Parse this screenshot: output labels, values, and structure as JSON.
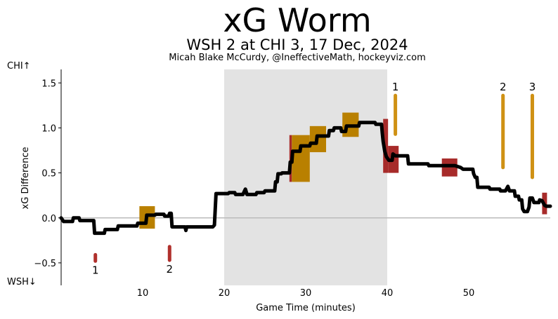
{
  "chart_data": {
    "type": "line",
    "title": "xG Worm",
    "subtitle": "WSH 2 at CHI 3, 17 Dec, 2024",
    "byline": "Micah Blake McCurdy, @IneffectiveMath, hockeyviz.com",
    "xlabel": "Game Time (minutes)",
    "ylabel": "xG Difference",
    "top_team_label": "CHI↑",
    "bottom_team_label": "WSH↓",
    "xlim": [
      0,
      60
    ],
    "ylim": [
      -0.75,
      1.65
    ],
    "xticks": [
      10,
      20,
      30,
      40,
      50
    ],
    "yticks": [
      -0.5,
      0.0,
      0.5,
      1.0,
      1.5
    ],
    "ytick_labels": [
      "−0.5",
      "0.0",
      "0.5",
      "1.0",
      "1.5"
    ],
    "shaded_period": [
      20,
      40
    ],
    "colors": {
      "worm": "#000000",
      "shade": "#e3e3e3",
      "zero_line": "#bbbbbb",
      "chi_penalty": "#a72b2a",
      "wsh_penalty": "#b98000",
      "goal_gold": "#cf9114",
      "goal_red": "#b0302c"
    },
    "worm": [
      [
        0,
        0.0
      ],
      [
        0.3,
        -0.04
      ],
      [
        1.4,
        -0.04
      ],
      [
        1.5,
        0.0
      ],
      [
        2.2,
        0.0
      ],
      [
        2.3,
        -0.03
      ],
      [
        4.0,
        -0.03
      ],
      [
        4.1,
        -0.17
      ],
      [
        5.3,
        -0.17
      ],
      [
        5.4,
        -0.13
      ],
      [
        6.9,
        -0.13
      ],
      [
        7.0,
        -0.09
      ],
      [
        9.3,
        -0.09
      ],
      [
        9.4,
        -0.06
      ],
      [
        10.4,
        -0.06
      ],
      [
        10.5,
        0.03
      ],
      [
        11.5,
        0.03
      ],
      [
        11.6,
        0.04
      ],
      [
        12.6,
        0.04
      ],
      [
        12.7,
        0.02
      ],
      [
        13.2,
        0.02
      ],
      [
        13.3,
        0.05
      ],
      [
        13.5,
        0.05
      ],
      [
        13.6,
        -0.1
      ],
      [
        15.2,
        -0.1
      ],
      [
        15.3,
        -0.14
      ],
      [
        15.4,
        -0.1
      ],
      [
        18.6,
        -0.1
      ],
      [
        18.8,
        -0.08
      ],
      [
        19.0,
        0.27
      ],
      [
        20.5,
        0.27
      ],
      [
        20.6,
        0.28
      ],
      [
        21.3,
        0.28
      ],
      [
        21.4,
        0.26
      ],
      [
        22.3,
        0.26
      ],
      [
        22.4,
        0.28
      ],
      [
        22.6,
        0.32
      ],
      [
        22.8,
        0.26
      ],
      [
        23.9,
        0.26
      ],
      [
        24.0,
        0.28
      ],
      [
        24.9,
        0.28
      ],
      [
        25.0,
        0.3
      ],
      [
        26.2,
        0.3
      ],
      [
        26.3,
        0.4
      ],
      [
        26.5,
        0.4
      ],
      [
        26.6,
        0.49
      ],
      [
        27.0,
        0.49
      ],
      [
        27.1,
        0.5
      ],
      [
        28.0,
        0.5
      ],
      [
        28.1,
        0.62
      ],
      [
        28.3,
        0.62
      ],
      [
        28.4,
        0.74
      ],
      [
        29.3,
        0.74
      ],
      [
        29.4,
        0.8
      ],
      [
        30.5,
        0.8
      ],
      [
        30.6,
        0.83
      ],
      [
        31.3,
        0.83
      ],
      [
        31.4,
        0.91
      ],
      [
        32.8,
        0.91
      ],
      [
        32.9,
        0.97
      ],
      [
        33.4,
        0.97
      ],
      [
        33.5,
        1.0
      ],
      [
        34.3,
        1.0
      ],
      [
        34.4,
        0.96
      ],
      [
        34.9,
        0.96
      ],
      [
        35.0,
        1.02
      ],
      [
        36.5,
        1.02
      ],
      [
        36.6,
        1.06
      ],
      [
        38.5,
        1.06
      ],
      [
        38.6,
        1.04
      ],
      [
        39.3,
        1.04
      ],
      [
        39.4,
        0.94
      ],
      [
        39.5,
        0.85
      ],
      [
        39.7,
        0.74
      ],
      [
        39.9,
        0.68
      ],
      [
        40.2,
        0.64
      ],
      [
        40.6,
        0.64
      ],
      [
        40.7,
        0.71
      ],
      [
        41.0,
        0.69
      ],
      [
        42.5,
        0.69
      ],
      [
        42.6,
        0.6
      ],
      [
        45.0,
        0.6
      ],
      [
        45.1,
        0.58
      ],
      [
        48.0,
        0.58
      ],
      [
        48.3,
        0.58
      ],
      [
        49.0,
        0.56
      ],
      [
        49.3,
        0.54
      ],
      [
        50.5,
        0.54
      ],
      [
        50.6,
        0.49
      ],
      [
        50.8,
        0.45
      ],
      [
        51.0,
        0.45
      ],
      [
        51.1,
        0.34
      ],
      [
        52.5,
        0.34
      ],
      [
        52.6,
        0.32
      ],
      [
        53.8,
        0.32
      ],
      [
        53.9,
        0.3
      ],
      [
        54.5,
        0.3
      ],
      [
        54.8,
        0.35
      ],
      [
        55.0,
        0.3
      ],
      [
        55.6,
        0.3
      ],
      [
        55.7,
        0.24
      ],
      [
        56.1,
        0.24
      ],
      [
        56.2,
        0.2
      ],
      [
        56.5,
        0.2
      ],
      [
        56.6,
        0.1
      ],
      [
        56.8,
        0.07
      ],
      [
        57.2,
        0.07
      ],
      [
        57.4,
        0.12
      ],
      [
        57.5,
        0.22
      ],
      [
        57.8,
        0.22
      ],
      [
        58.0,
        0.17
      ],
      [
        58.6,
        0.17
      ],
      [
        58.7,
        0.2
      ],
      [
        59.0,
        0.19
      ],
      [
        59.3,
        0.14
      ],
      [
        59.5,
        0.13
      ],
      [
        60.0,
        0.13
      ]
    ],
    "penalties": [
      {
        "team": "WSH",
        "x0": 9.6,
        "x1": 11.5,
        "y0": -0.12,
        "y1": 0.13
      },
      {
        "team": "CHI",
        "x0": 28.0,
        "x1": 28.3,
        "y0": 0.4,
        "y1": 0.92
      },
      {
        "team": "WSH",
        "x0": 28.3,
        "x1": 30.5,
        "y0": 0.4,
        "y1": 0.92
      },
      {
        "team": "WSH",
        "x0": 30.5,
        "x1": 32.5,
        "y0": 0.73,
        "y1": 1.02
      },
      {
        "team": "WSH",
        "x0": 34.5,
        "x1": 36.5,
        "y0": 0.9,
        "y1": 1.17
      },
      {
        "team": "CHI",
        "x0": 39.5,
        "x1": 40.1,
        "y0": 0.5,
        "y1": 1.1
      },
      {
        "team": "CHI",
        "x0": 40.1,
        "x1": 41.4,
        "y0": 0.5,
        "y1": 0.8
      },
      {
        "team": "CHI",
        "x0": 46.7,
        "x1": 48.6,
        "y0": 0.46,
        "y1": 0.66
      },
      {
        "team": "CHI",
        "x0": 59.0,
        "x1": 59.6,
        "y0": 0.04,
        "y1": 0.28
      }
    ],
    "goals": [
      {
        "team": "WSH",
        "label": "1",
        "x": 4.2,
        "y0": -0.48,
        "y1": -0.41
      },
      {
        "team": "WSH",
        "label": "2",
        "x": 13.3,
        "y0": -0.47,
        "y1": -0.32
      },
      {
        "team": "CHI",
        "label": "1",
        "x": 41.0,
        "y0": 0.93,
        "y1": 1.36
      },
      {
        "team": "CHI",
        "label": "2",
        "x": 54.2,
        "y0": 0.56,
        "y1": 1.36
      },
      {
        "team": "CHI",
        "label": "3",
        "x": 57.8,
        "y0": 0.45,
        "y1": 1.36
      }
    ]
  }
}
